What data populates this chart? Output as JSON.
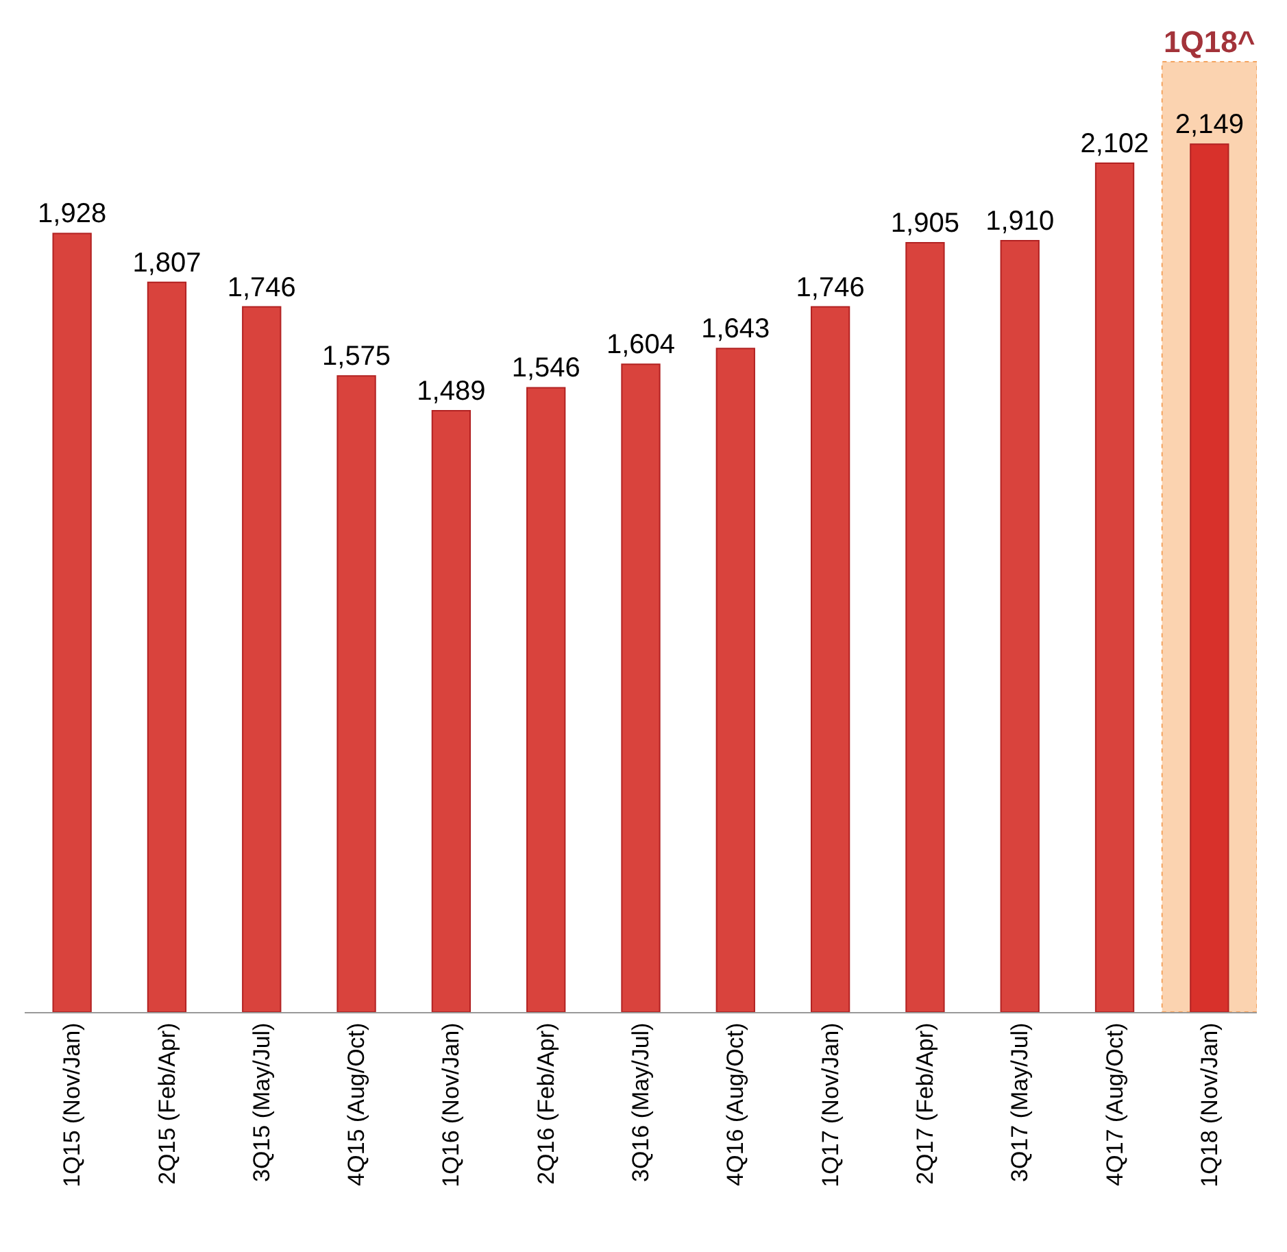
{
  "chart_data": {
    "type": "bar",
    "categories": [
      "1Q15 (Nov/Jan)",
      "2Q15 (Feb/Apr)",
      "3Q15 (May/Jul)",
      "4Q15 (Aug/Oct)",
      "1Q16 (Nov/Jan)",
      "2Q16 (Feb/Apr)",
      "3Q16 (May/Jul)",
      "4Q16 (Aug/Oct)",
      "1Q17 (Nov/Jan)",
      "2Q17 (Feb/Apr)",
      "3Q17 (May/Jul)",
      "4Q17 (Aug/Oct)",
      "1Q18 (Nov/Jan)"
    ],
    "values": [
      1928,
      1807,
      1746,
      1575,
      1489,
      1546,
      1604,
      1643,
      1746,
      1905,
      1910,
      2102,
      2149
    ],
    "value_labels": [
      "1,928",
      "1,807",
      "1,746",
      "1,575",
      "1,489",
      "1,546",
      "1,604",
      "1,643",
      "1,746",
      "1,905",
      "1,910",
      "2,102",
      "2,149"
    ],
    "colors": [
      "#d9433d",
      "#d9433d",
      "#d9433d",
      "#d9433d",
      "#d9433d",
      "#d9433d",
      "#d9433d",
      "#d9433d",
      "#d9433d",
      "#d9433d",
      "#d9433d",
      "#d9433d",
      "#d8312b"
    ],
    "bands": [
      {
        "axis": "x",
        "from": "1Q18 (Nov/Jan)",
        "to": "1Q18 (Nov/Jan)",
        "label": "1Q18^",
        "color": "#fbd3b0"
      }
    ],
    "tick_labels": "x"
  }
}
